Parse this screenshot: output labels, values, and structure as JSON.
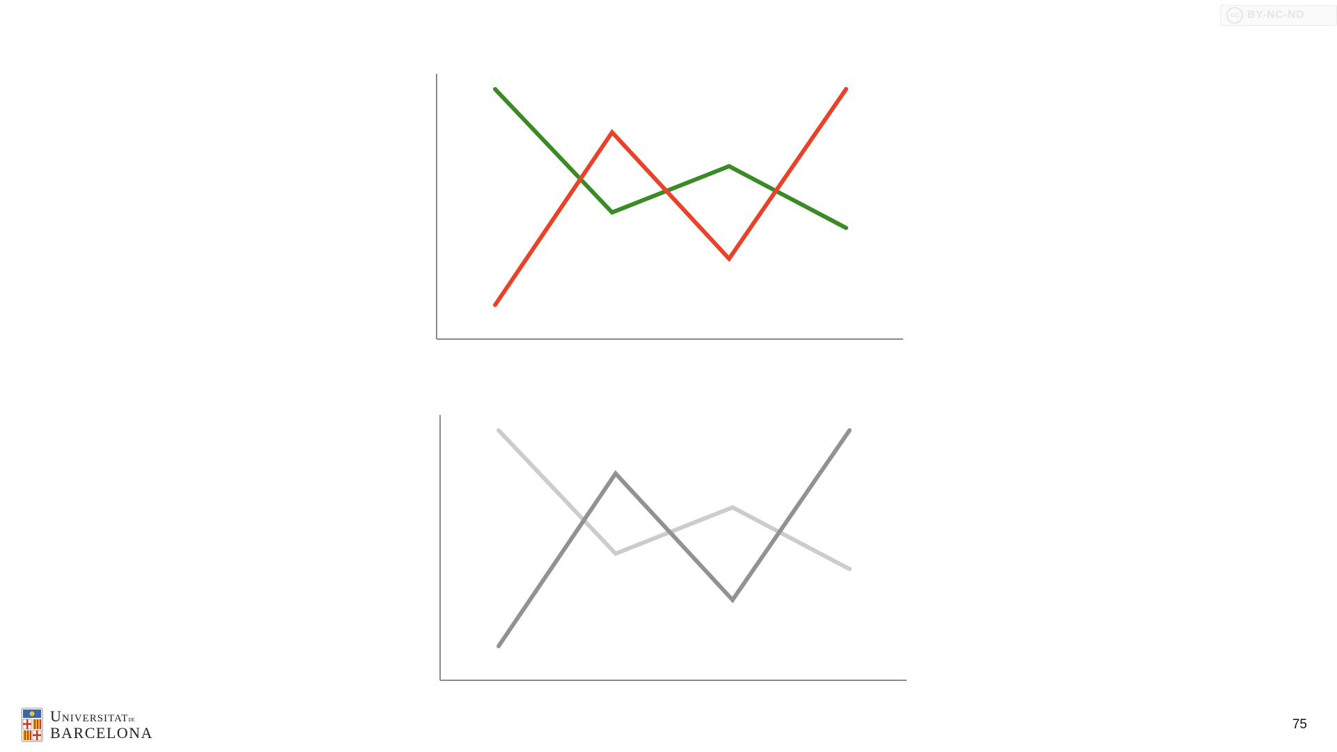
{
  "license": {
    "icon": "cc-icon",
    "label": "BY-NC-ND",
    "cc_glyph": "cc"
  },
  "logo": {
    "line1": "Universitat",
    "line1_suffix": "de",
    "line2": "Barcelona",
    "icon": "university-shield-icon"
  },
  "page_number": "75",
  "chart_data": [
    {
      "type": "line",
      "title": "",
      "xlabel": "",
      "ylabel": "",
      "x": [
        1,
        2,
        3,
        4
      ],
      "ylim": [
        0,
        10
      ],
      "grid": false,
      "series": [
        {
          "values": [
            9.0,
            5.0,
            6.5,
            4.5
          ],
          "color": "#3a8a26"
        },
        {
          "values": [
            2.0,
            7.6,
            3.5,
            9.0
          ],
          "color": "#e8432a"
        }
      ]
    },
    {
      "type": "line",
      "title": "",
      "xlabel": "",
      "ylabel": "",
      "x": [
        1,
        2,
        3,
        4
      ],
      "ylim": [
        0,
        10
      ],
      "grid": false,
      "series": [
        {
          "values": [
            9.0,
            5.0,
            6.5,
            4.5
          ],
          "color": "#cccccc"
        },
        {
          "values": [
            2.0,
            7.6,
            3.5,
            9.0
          ],
          "color": "#929292"
        }
      ]
    }
  ]
}
